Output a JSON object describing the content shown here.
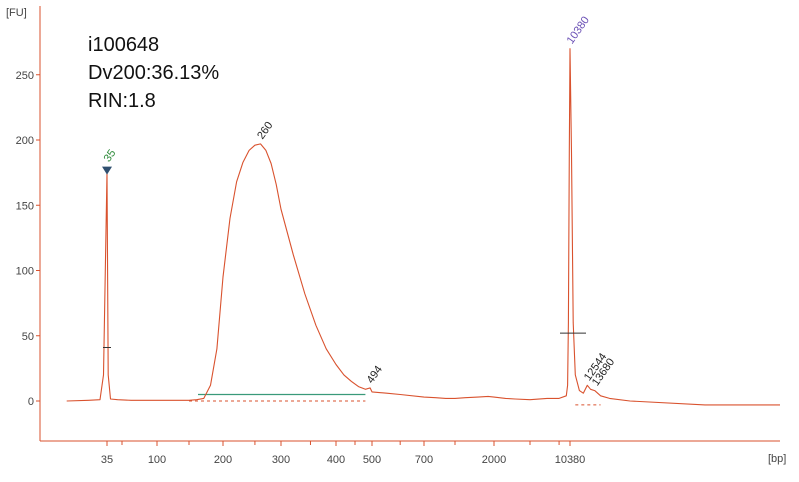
{
  "annotations": {
    "sample_id": "i100648",
    "dv200": "Dv200:36.13%",
    "rin": "RIN:1.8"
  },
  "colors": {
    "trace": "#d9522e",
    "baseline": "#d9522e",
    "region": "#3a9a7a",
    "axis": "#d9522e",
    "marker_label": "#2e8b3a",
    "upper_label": "#6a4fb5",
    "peak_label": "#222222"
  },
  "chart_data": {
    "type": "line",
    "xlabel": "[bp]",
    "ylabel": "[FU]",
    "ylim": [
      -30,
      300
    ],
    "y_ticks": [
      0,
      50,
      100,
      150,
      200,
      250
    ],
    "x_tick_labels": [
      "35",
      "100",
      "200",
      "300",
      "400",
      "500",
      "700",
      "2000",
      "10380"
    ],
    "x_tick_bp": [
      35,
      100,
      200,
      300,
      400,
      500,
      700,
      2000,
      10380
    ],
    "series": [
      {
        "points": [
          [
            25,
            0
          ],
          [
            30,
            0.5
          ],
          [
            33,
            1
          ],
          [
            34,
            20
          ],
          [
            35,
            175
          ],
          [
            36,
            20
          ],
          [
            38,
            1.5
          ],
          [
            45,
            1
          ],
          [
            60,
            0.5
          ],
          [
            80,
            0.5
          ],
          [
            100,
            0.5
          ],
          [
            120,
            0.5
          ],
          [
            140,
            0.5
          ],
          [
            150,
            0.5
          ],
          [
            160,
            1
          ],
          [
            170,
            2
          ],
          [
            180,
            12
          ],
          [
            190,
            40
          ],
          [
            200,
            95
          ],
          [
            210,
            140
          ],
          [
            220,
            168
          ],
          [
            230,
            183
          ],
          [
            240,
            192
          ],
          [
            250,
            196
          ],
          [
            260,
            197
          ],
          [
            270,
            192
          ],
          [
            280,
            182
          ],
          [
            290,
            166
          ],
          [
            300,
            147
          ],
          [
            320,
            112
          ],
          [
            340,
            82
          ],
          [
            360,
            58
          ],
          [
            380,
            40
          ],
          [
            400,
            28
          ],
          [
            420,
            20
          ],
          [
            440,
            15
          ],
          [
            460,
            11
          ],
          [
            480,
            9
          ],
          [
            494,
            10
          ],
          [
            500,
            7
          ],
          [
            550,
            6
          ],
          [
            600,
            5
          ],
          [
            700,
            3
          ],
          [
            800,
            2.5
          ],
          [
            900,
            2
          ],
          [
            1000,
            2
          ],
          [
            1200,
            2.5
          ],
          [
            1500,
            3
          ],
          [
            1800,
            3.5
          ],
          [
            2000,
            3
          ],
          [
            2500,
            2
          ],
          [
            3000,
            1.5
          ],
          [
            4000,
            1
          ],
          [
            6000,
            2
          ],
          [
            8000,
            2
          ],
          [
            9500,
            4
          ],
          [
            9800,
            12
          ],
          [
            10000,
            60
          ],
          [
            10200,
            190
          ],
          [
            10380,
            270
          ],
          [
            10550,
            190
          ],
          [
            10750,
            60
          ],
          [
            11000,
            20
          ],
          [
            11500,
            8
          ],
          [
            12000,
            6
          ],
          [
            12544,
            12
          ],
          [
            13000,
            9
          ],
          [
            13600,
            8
          ],
          [
            14500,
            4
          ],
          [
            16000,
            2
          ],
          [
            20000,
            0
          ],
          [
            30000,
            -3
          ],
          [
            45000,
            -3
          ]
        ]
      }
    ],
    "peaks": [
      {
        "bp": "35",
        "fu": 175
      },
      {
        "bp": "260",
        "fu": 197
      },
      {
        "bp": "494",
        "fu": 10
      },
      {
        "bp": "10380",
        "fu": 270
      },
      {
        "bp": "12544",
        "fu": 12
      },
      {
        "bp": "13680",
        "fu": 8
      }
    ],
    "smear_region_bp": [
      200,
      480
    ],
    "grid": false,
    "legend": "none"
  }
}
